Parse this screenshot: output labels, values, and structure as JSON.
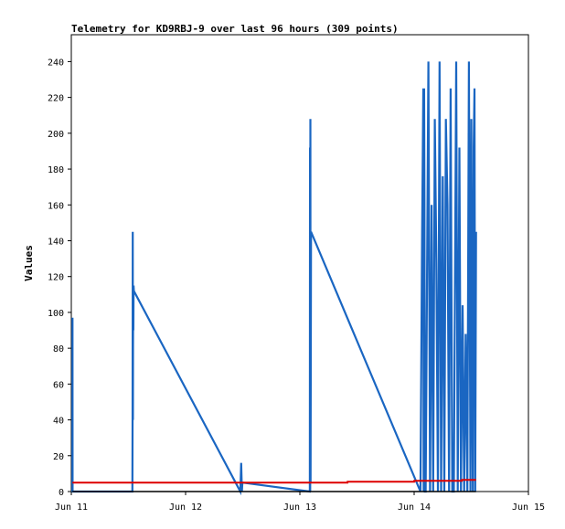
{
  "chart_data": {
    "type": "line",
    "title": "Telemetry for KD9RBJ-9 over last 96 hours (309 points)",
    "xlabel": "",
    "ylabel": "Values",
    "x_range": [
      "2024-06-11 00:00",
      "2024-06-15 00:00"
    ],
    "x_tick_labels": [
      "Jun 11",
      "Jun 12",
      "Jun 13",
      "Jun 14",
      "Jun 15"
    ],
    "ylim": [
      0,
      255
    ],
    "y_ticks": [
      0,
      20,
      40,
      60,
      80,
      100,
      120,
      140,
      160,
      180,
      200,
      220,
      240
    ],
    "grid": false,
    "legend": "none",
    "series": [
      {
        "color": "#1a66c2",
        "x": [
          "2024-06-11 00:14",
          "2024-06-11 00:15",
          "2024-06-11 00:16",
          "2024-06-11 12:50",
          "2024-06-11 12:52",
          "2024-06-11 12:54",
          "2024-06-11 12:56",
          "2024-06-11 12:58",
          "2024-06-11 13:00",
          "2024-06-11 13:02",
          "2024-06-11 13:04",
          "2024-06-11 13:08",
          "2024-06-12 11:30",
          "2024-06-12 11:40",
          "2024-06-12 11:50",
          "2024-06-12 11:55",
          "2024-06-13 02:05",
          "2024-06-13 02:08",
          "2024-06-13 02:10",
          "2024-06-13 02:12",
          "2024-06-13 02:15",
          "2024-06-13 02:20",
          "2024-06-14 01:20",
          "2024-06-14 01:40",
          "2024-06-14 01:50",
          "2024-06-14 01:55",
          "2024-06-14 02:00",
          "2024-06-14 02:05",
          "2024-06-14 02:10",
          "2024-06-14 02:15",
          "2024-06-14 02:25",
          "2024-06-14 03:00",
          "2024-06-14 03:20",
          "2024-06-14 03:40",
          "2024-06-14 04:00",
          "2024-06-14 04:20",
          "2024-06-14 04:40",
          "2024-06-14 05:00",
          "2024-06-14 05:20",
          "2024-06-14 05:40",
          "2024-06-14 06:00",
          "2024-06-14 06:20",
          "2024-06-14 06:40",
          "2024-06-14 07:00",
          "2024-06-14 07:20",
          "2024-06-14 07:40",
          "2024-06-14 08:00",
          "2024-06-14 08:20",
          "2024-06-14 08:50",
          "2024-06-14 09:10",
          "2024-06-14 09:30",
          "2024-06-14 09:50",
          "2024-06-14 10:10",
          "2024-06-14 10:30",
          "2024-06-14 10:50",
          "2024-06-14 11:10",
          "2024-06-14 11:30",
          "2024-06-14 11:50",
          "2024-06-14 12:00",
          "2024-06-14 12:10",
          "2024-06-14 12:20",
          "2024-06-14 12:30",
          "2024-06-14 12:40",
          "2024-06-14 12:50",
          "2024-06-14 13:00"
        ],
        "y": [
          0,
          97,
          0,
          0,
          40,
          145,
          40,
          80,
          112,
          90,
          115,
          112,
          0,
          16,
          0,
          5,
          0,
          192,
          0,
          208,
          5,
          145,
          0,
          144,
          192,
          225,
          0,
          225,
          160,
          0,
          0,
          240,
          0,
          160,
          0,
          208,
          128,
          0,
          240,
          0,
          176,
          0,
          208,
          160,
          0,
          225,
          0,
          0,
          240,
          0,
          192,
          0,
          104,
          0,
          88,
          0,
          240,
          0,
          208,
          80,
          0,
          192,
          225,
          0,
          145
        ]
      },
      {
        "color": "#dd0000",
        "x": [
          "2024-06-11 00:14",
          "2024-06-13 10:00",
          "2024-06-13 10:01",
          "2024-06-14 00:00",
          "2024-06-14 00:01",
          "2024-06-14 10:00",
          "2024-06-14 10:01",
          "2024-06-14 13:00"
        ],
        "y": [
          5,
          5,
          5.5,
          5.5,
          6,
          6,
          6.5,
          6.5
        ]
      },
      {
        "color": "#000000",
        "x": [
          "2024-06-11 00:14",
          "2024-06-14 13:00"
        ],
        "y": [
          0,
          0
        ]
      }
    ]
  }
}
